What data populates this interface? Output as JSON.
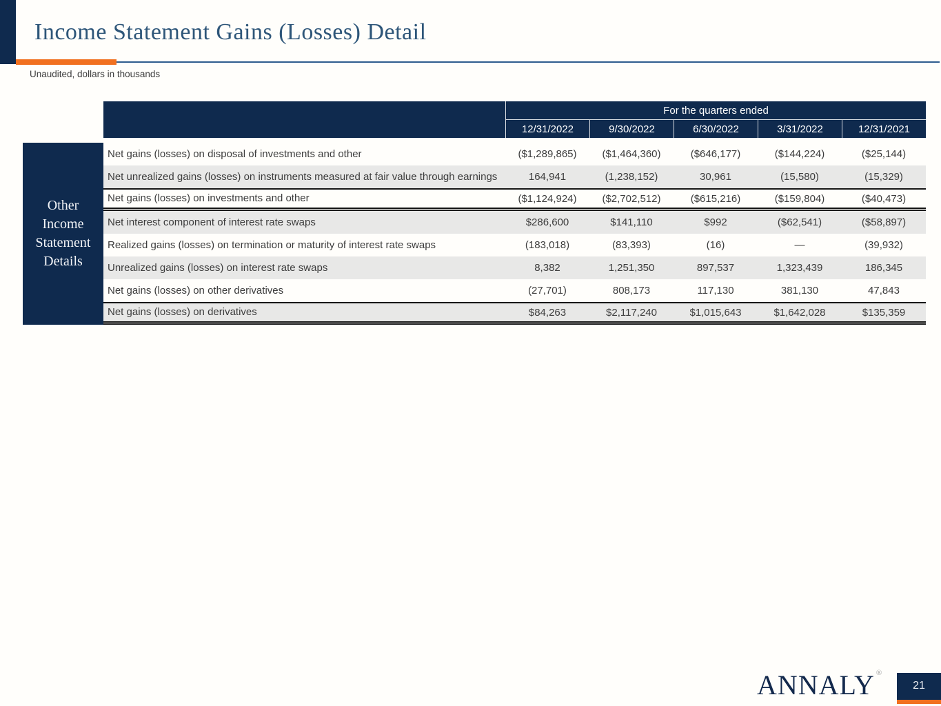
{
  "slide": {
    "title": "Income Statement Gains (Losses) Detail",
    "subtitle": "Unaudited, dollars in thousands",
    "footer": {
      "logo_text": "ANNALY",
      "registered_mark": "®",
      "page_number": "21"
    }
  },
  "colors": {
    "navy": "#0f2a4e",
    "orange": "#f1701f",
    "title_blue": "#2e5679",
    "rule_blue": "#2e5c8e",
    "shaded_row": "#e8e8e7",
    "body_text": "#3c3c3c",
    "page_bg": "#fffefb"
  },
  "table": {
    "side_label_lines": [
      "Other",
      "Income",
      "Statement",
      "Details"
    ],
    "header_group_label": "For the quarters ended",
    "columns": [
      "12/31/2022",
      "9/30/2022",
      "6/30/2022",
      "3/31/2022",
      "12/31/2021"
    ],
    "rows": [
      {
        "label": "Net gains (losses) on disposal of investments and other",
        "values": [
          "($1,289,865)",
          "($1,464,360)",
          "($646,177)",
          "($144,224)",
          "($25,144)"
        ],
        "shaded": false,
        "subtotal": false
      },
      {
        "label": "Net unrealized gains (losses) on instruments measured at fair value through earnings",
        "values": [
          "164,941",
          "(1,238,152)",
          "30,961",
          "(15,580)",
          "(15,329)"
        ],
        "shaded": true,
        "subtotal": false
      },
      {
        "label": "Net gains (losses) on investments and other",
        "values": [
          "($1,124,924)",
          "($2,702,512)",
          "($615,216)",
          "($159,804)",
          "($40,473)"
        ],
        "shaded": false,
        "subtotal": true
      },
      {
        "label": "Net interest component of interest rate swaps",
        "values": [
          "$286,600",
          "$141,110",
          "$992",
          "($62,541)",
          "($58,897)"
        ],
        "shaded": true,
        "subtotal": false
      },
      {
        "label": "Realized gains (losses) on termination or maturity of interest rate swaps",
        "values": [
          "(183,018)",
          "(83,393)",
          "(16)",
          "—",
          "(39,932)"
        ],
        "shaded": false,
        "subtotal": false
      },
      {
        "label": "Unrealized gains (losses) on interest rate swaps",
        "values": [
          "8,382",
          "1,251,350",
          "897,537",
          "1,323,439",
          "186,345"
        ],
        "shaded": true,
        "subtotal": false
      },
      {
        "label": "Net gains (losses) on other derivatives",
        "values": [
          "(27,701)",
          "808,173",
          "117,130",
          "381,130",
          "47,843"
        ],
        "shaded": false,
        "subtotal": false
      },
      {
        "label": "Net gains (losses) on derivatives",
        "values": [
          "$84,263",
          "$2,117,240",
          "$1,015,643",
          "$1,642,028",
          "$135,359"
        ],
        "shaded": true,
        "subtotal": true
      }
    ]
  }
}
